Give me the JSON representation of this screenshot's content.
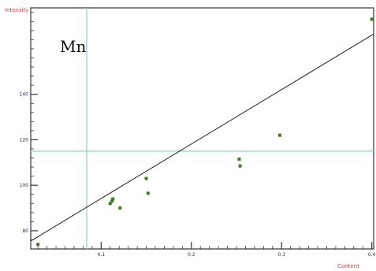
{
  "chart_data": {
    "type": "scatter",
    "element_label": "Mn",
    "xlabel": "Content",
    "ylabel": "Intensity",
    "xlim": [
      0.022,
      0.402
    ],
    "ylim": [
      72,
      178
    ],
    "x_ticks": [
      0.1,
      0.2,
      0.3,
      0.4
    ],
    "x_tick_labels": [
      "0.1",
      "0.2",
      "0.3",
      "0.4"
    ],
    "y_ticks": [
      80,
      100,
      120,
      140
    ],
    "y_tick_labels": [
      "80",
      "100",
      "120",
      "140"
    ],
    "grid": false,
    "points": [
      {
        "x": 0.03,
        "y": 74.0
      },
      {
        "x": 0.11,
        "y": 92.0
      },
      {
        "x": 0.112,
        "y": 93.0
      },
      {
        "x": 0.113,
        "y": 94.0
      },
      {
        "x": 0.121,
        "y": 90.0
      },
      {
        "x": 0.15,
        "y": 103.0
      },
      {
        "x": 0.152,
        "y": 96.5
      },
      {
        "x": 0.253,
        "y": 111.5
      },
      {
        "x": 0.254,
        "y": 108.5
      },
      {
        "x": 0.298,
        "y": 122.0
      },
      {
        "x": 0.4,
        "y": 173.0
      }
    ],
    "fit_line": {
      "x": [
        0.022,
        0.402
      ],
      "y": [
        75.5,
        166.5
      ]
    },
    "crosshair": {
      "x": 0.084,
      "y": 115.0
    },
    "colors": {
      "points": "#3a7d1e",
      "fit_line": "#222222",
      "crosshair": "#7fd6c8",
      "frame": "#333333",
      "axis_title": "#d04040"
    }
  }
}
